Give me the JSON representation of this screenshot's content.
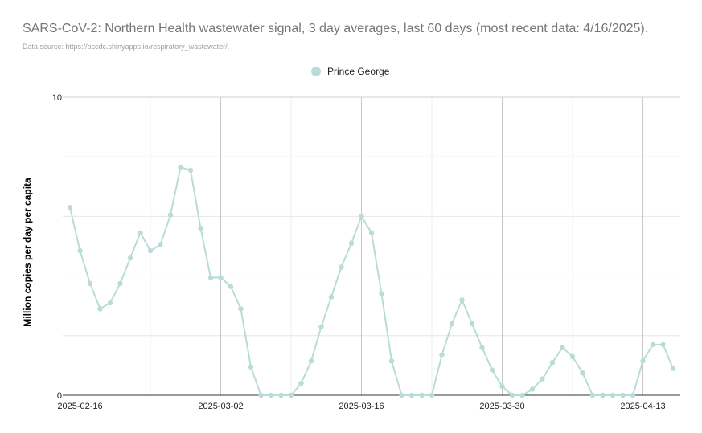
{
  "chart": {
    "title": "SARS-CoV-2: Northern Health wastewater signal, 3 day averages, last 60 days (most recent data: 4/16/2025).",
    "subtitle": "Data source: https://bccdc.shinyapps.io/respiratory_wastewater/.",
    "legend_label": "Prince George",
    "ylabel": "Million copies per day per capita",
    "series_color": "#b9dcd8"
  },
  "chart_data": {
    "type": "line",
    "title": "SARS-CoV-2: Northern Health wastewater signal, 3 day averages, last 60 days (most recent data: 4/16/2025).",
    "xlabel": "",
    "ylabel": "Million copies per day per capita",
    "ylim": [
      0,
      10
    ],
    "y_ticks": [
      "0",
      "10"
    ],
    "x_ticks": [
      "2025-02-16",
      "2025-03-02",
      "2025-03-16",
      "2025-03-30",
      "2025-04-13"
    ],
    "x_start": "2025-02-15",
    "x_end": "2025-04-16",
    "legend_position": "top",
    "grid": true,
    "series": [
      {
        "name": "Prince George",
        "color": "#b9dcd8",
        "x": [
          "2025-02-15",
          "2025-02-16",
          "2025-02-17",
          "2025-02-18",
          "2025-02-19",
          "2025-02-20",
          "2025-02-21",
          "2025-02-22",
          "2025-02-23",
          "2025-02-24",
          "2025-02-25",
          "2025-02-26",
          "2025-02-27",
          "2025-02-28",
          "2025-03-01",
          "2025-03-02",
          "2025-03-03",
          "2025-03-04",
          "2025-03-05",
          "2025-03-06",
          "2025-03-07",
          "2025-03-08",
          "2025-03-09",
          "2025-03-10",
          "2025-03-11",
          "2025-03-12",
          "2025-03-13",
          "2025-03-14",
          "2025-03-15",
          "2025-03-16",
          "2025-03-17",
          "2025-03-18",
          "2025-03-19",
          "2025-03-20",
          "2025-03-21",
          "2025-03-22",
          "2025-03-23",
          "2025-03-24",
          "2025-03-25",
          "2025-03-26",
          "2025-03-27",
          "2025-03-28",
          "2025-03-29",
          "2025-03-30",
          "2025-03-31",
          "2025-04-01",
          "2025-04-02",
          "2025-04-03",
          "2025-04-04",
          "2025-04-05",
          "2025-04-06",
          "2025-04-07",
          "2025-04-08",
          "2025-04-09",
          "2025-04-10",
          "2025-04-11",
          "2025-04-12",
          "2025-04-13",
          "2025-04-14",
          "2025-04-15",
          "2025-04-16"
        ],
        "values": [
          6.3,
          4.85,
          3.75,
          2.9,
          3.1,
          3.75,
          4.6,
          5.45,
          4.85,
          5.05,
          6.05,
          7.65,
          7.55,
          5.6,
          3.95,
          3.95,
          3.65,
          2.9,
          0.95,
          0,
          0,
          0,
          0,
          0.4,
          1.15,
          2.3,
          3.3,
          4.3,
          5.1,
          6.0,
          5.45,
          3.4,
          1.15,
          0,
          0,
          0,
          0,
          1.35,
          2.4,
          3.2,
          2.4,
          1.6,
          0.85,
          0.3,
          0,
          0,
          0.2,
          0.55,
          1.1,
          1.6,
          1.3,
          0.75,
          0,
          0,
          0,
          0,
          0,
          1.15,
          1.7,
          1.7,
          0.9
        ]
      }
    ]
  }
}
